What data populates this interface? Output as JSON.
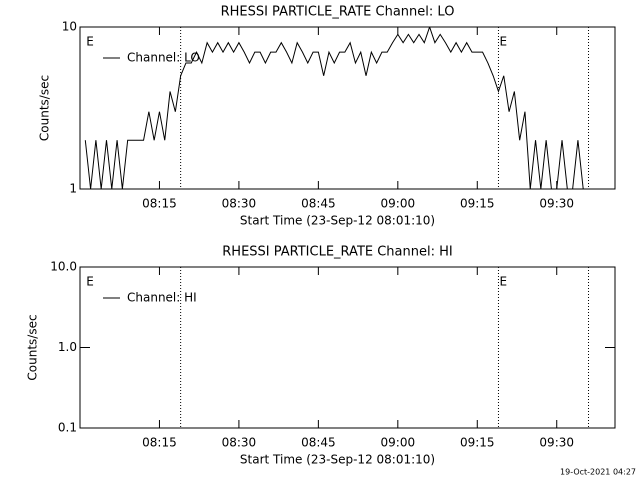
{
  "chart_data": [
    {
      "type": "line",
      "title": "RHESSI PARTICLE_RATE Channel: LO",
      "xlabel": "Start Time (23-Sep-12 08:01:10)",
      "ylabel": "Counts/sec",
      "log_y": true,
      "xlim": [
        "08:00",
        "09:41"
      ],
      "xticks": [
        "08:15",
        "08:30",
        "08:45",
        "09:00",
        "09:15",
        "09:30"
      ],
      "ylim": [
        1,
        10
      ],
      "yticks": [
        1,
        10
      ],
      "vlines": [
        "08:19",
        "09:19",
        "09:36"
      ],
      "annotations": [
        {
          "x": "08:01",
          "text": "E"
        },
        {
          "x": "09:19",
          "text": "E"
        }
      ],
      "x": [
        "08:01",
        "08:02",
        "08:03",
        "08:04",
        "08:05",
        "08:06",
        "08:07",
        "08:08",
        "08:09",
        "08:10",
        "08:11",
        "08:12",
        "08:13",
        "08:14",
        "08:15",
        "08:16",
        "08:17",
        "08:18",
        "08:19",
        "08:20",
        "08:21",
        "08:22",
        "08:23",
        "08:24",
        "08:25",
        "08:26",
        "08:27",
        "08:28",
        "08:29",
        "08:30",
        "08:31",
        "08:32",
        "08:33",
        "08:34",
        "08:35",
        "08:36",
        "08:37",
        "08:38",
        "08:39",
        "08:40",
        "08:41",
        "08:42",
        "08:43",
        "08:44",
        "08:45",
        "08:46",
        "08:47",
        "08:48",
        "08:49",
        "08:50",
        "08:51",
        "08:52",
        "08:53",
        "08:54",
        "08:55",
        "08:56",
        "08:57",
        "08:58",
        "08:59",
        "09:00",
        "09:01",
        "09:02",
        "09:03",
        "09:04",
        "09:05",
        "09:06",
        "09:07",
        "09:08",
        "09:09",
        "09:10",
        "09:11",
        "09:12",
        "09:13",
        "09:14",
        "09:15",
        "09:16",
        "09:17",
        "09:18",
        "09:19",
        "09:20",
        "09:21",
        "09:22",
        "09:23",
        "09:24",
        "09:25",
        "09:26",
        "09:27",
        "09:28",
        "09:29",
        "09:30",
        "09:31",
        "09:32",
        "09:33",
        "09:34",
        "09:35"
      ],
      "series": [
        {
          "name": "Channel: LO",
          "color": "#000000",
          "values": [
            2,
            1,
            2,
            1,
            2,
            1,
            2,
            1,
            2,
            2,
            2,
            2,
            3,
            2,
            3,
            2,
            4,
            3,
            5,
            6,
            6,
            7,
            6,
            8,
            7,
            8,
            7,
            8,
            7,
            8,
            7,
            6,
            7,
            7,
            6,
            7,
            7,
            8,
            7,
            6,
            8,
            7,
            6,
            7,
            7,
            5,
            7,
            6,
            7,
            7,
            8,
            6,
            7,
            5,
            7,
            6,
            7,
            7,
            8,
            9,
            8,
            9,
            8,
            9,
            8,
            10,
            8,
            9,
            8,
            7,
            8,
            7,
            8,
            7,
            7,
            7,
            6,
            5,
            4,
            5,
            3,
            4,
            2,
            3,
            1,
            2,
            1,
            2,
            1,
            1,
            2,
            1,
            1,
            2,
            1
          ]
        }
      ]
    },
    {
      "type": "line",
      "title": "RHESSI PARTICLE_RATE Channel: HI",
      "xlabel": "Start Time (23-Sep-12 08:01:10)",
      "ylabel": "Counts/sec",
      "log_y": true,
      "xlim": [
        "08:00",
        "09:41"
      ],
      "xticks": [
        "08:15",
        "08:30",
        "08:45",
        "09:00",
        "09:15",
        "09:30"
      ],
      "ylim": [
        0.1,
        10
      ],
      "yticks": [
        0.1,
        {
          "value": 1,
          "label": "1.0"
        },
        {
          "value": 10,
          "label": "10.0"
        }
      ],
      "vlines": [
        "08:19",
        "09:19",
        "09:36"
      ],
      "annotations": [
        {
          "x": "08:01",
          "text": "E"
        },
        {
          "x": "09:19",
          "text": "E"
        }
      ],
      "x": [],
      "series": [
        {
          "name": "Channel: HI",
          "color": "#000000",
          "values": []
        }
      ]
    }
  ],
  "footer": "19-Oct-2021 04:27"
}
